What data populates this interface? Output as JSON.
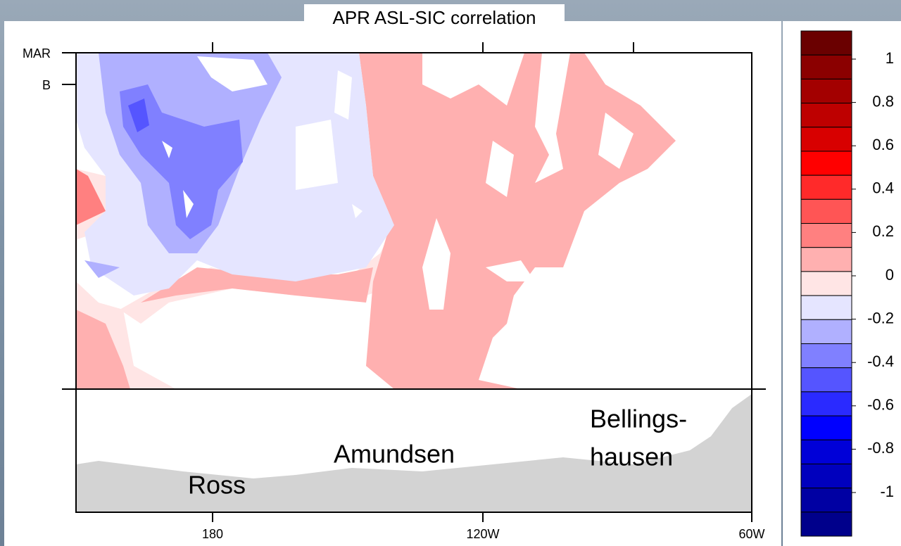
{
  "title": "APR ASL-SIC correlation",
  "y_labels": [
    "MAR",
    "B"
  ],
  "x_labels": [
    "180",
    "120W",
    "60W"
  ],
  "regions": {
    "ross": "Ross",
    "amundsen": "Amundsen",
    "bellingshausen": [
      "Bellings-",
      "hausen"
    ]
  },
  "colorbar": {
    "ticks": [
      1,
      0.8,
      0.6,
      0.4,
      0.2,
      0,
      -0.2,
      -0.4,
      -0.6,
      -0.8,
      -1
    ],
    "colors": [
      "#6a0000",
      "#8b0000",
      "#a30000",
      "#be0000",
      "#d80000",
      "#ff0000",
      "#ff2a2a",
      "#ff5555",
      "#ff8080",
      "#ffb0b0",
      "#ffe5e5",
      "#e5e5ff",
      "#b0b0ff",
      "#8080ff",
      "#5555ff",
      "#2a2aff",
      "#0000ff",
      "#0000d8",
      "#0000be",
      "#0000a3",
      "#00008b"
    ]
  }
}
